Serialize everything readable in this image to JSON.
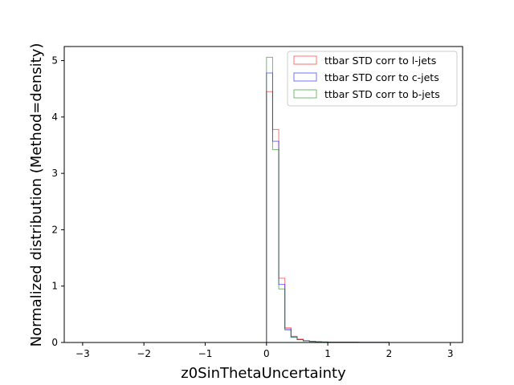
{
  "chart_data": {
    "type": "histogram",
    "xlabel": "z0SinThetaUncertainty",
    "ylabel": "Normalized distribution (Method=density)",
    "xlim": [
      -3.3,
      3.2
    ],
    "ylim": [
      0,
      5.25
    ],
    "xticks": [
      -3,
      -2,
      -1,
      0,
      1,
      2,
      3
    ],
    "yticks": [
      0,
      1,
      2,
      3,
      4,
      5
    ],
    "xtick_labels": [
      "−3",
      "−2",
      "−1",
      "0",
      "1",
      "2",
      "3"
    ],
    "ytick_labels": [
      "0",
      "1",
      "2",
      "3",
      "4",
      "5"
    ],
    "legend_position": "top-right",
    "bin_edges": [
      -3.0,
      0.0,
      0.1,
      0.2,
      0.3,
      0.4,
      0.5,
      0.6,
      0.7,
      0.8,
      0.9,
      1.0,
      1.5,
      2.0,
      2.9
    ],
    "series": [
      {
        "name": "ttbar STD corr to l-jets",
        "color": "#ff0000",
        "values": [
          0,
          4.45,
          3.78,
          1.14,
          0.26,
          0.11,
          0.06,
          0.03,
          0.02,
          0.015,
          0.01,
          0.008,
          0.004,
          0
        ]
      },
      {
        "name": "ttbar STD corr to c-jets",
        "color": "#0000ff",
        "values": [
          0,
          4.78,
          3.57,
          1.03,
          0.24,
          0.1,
          0.05,
          0.03,
          0.02,
          0.012,
          0.009,
          0.006,
          0.003,
          0
        ]
      },
      {
        "name": "ttbar STD corr to b-jets",
        "color": "#008000",
        "values": [
          0,
          5.06,
          3.42,
          0.95,
          0.22,
          0.09,
          0.05,
          0.028,
          0.018,
          0.011,
          0.008,
          0.006,
          0.003,
          0
        ]
      }
    ]
  }
}
